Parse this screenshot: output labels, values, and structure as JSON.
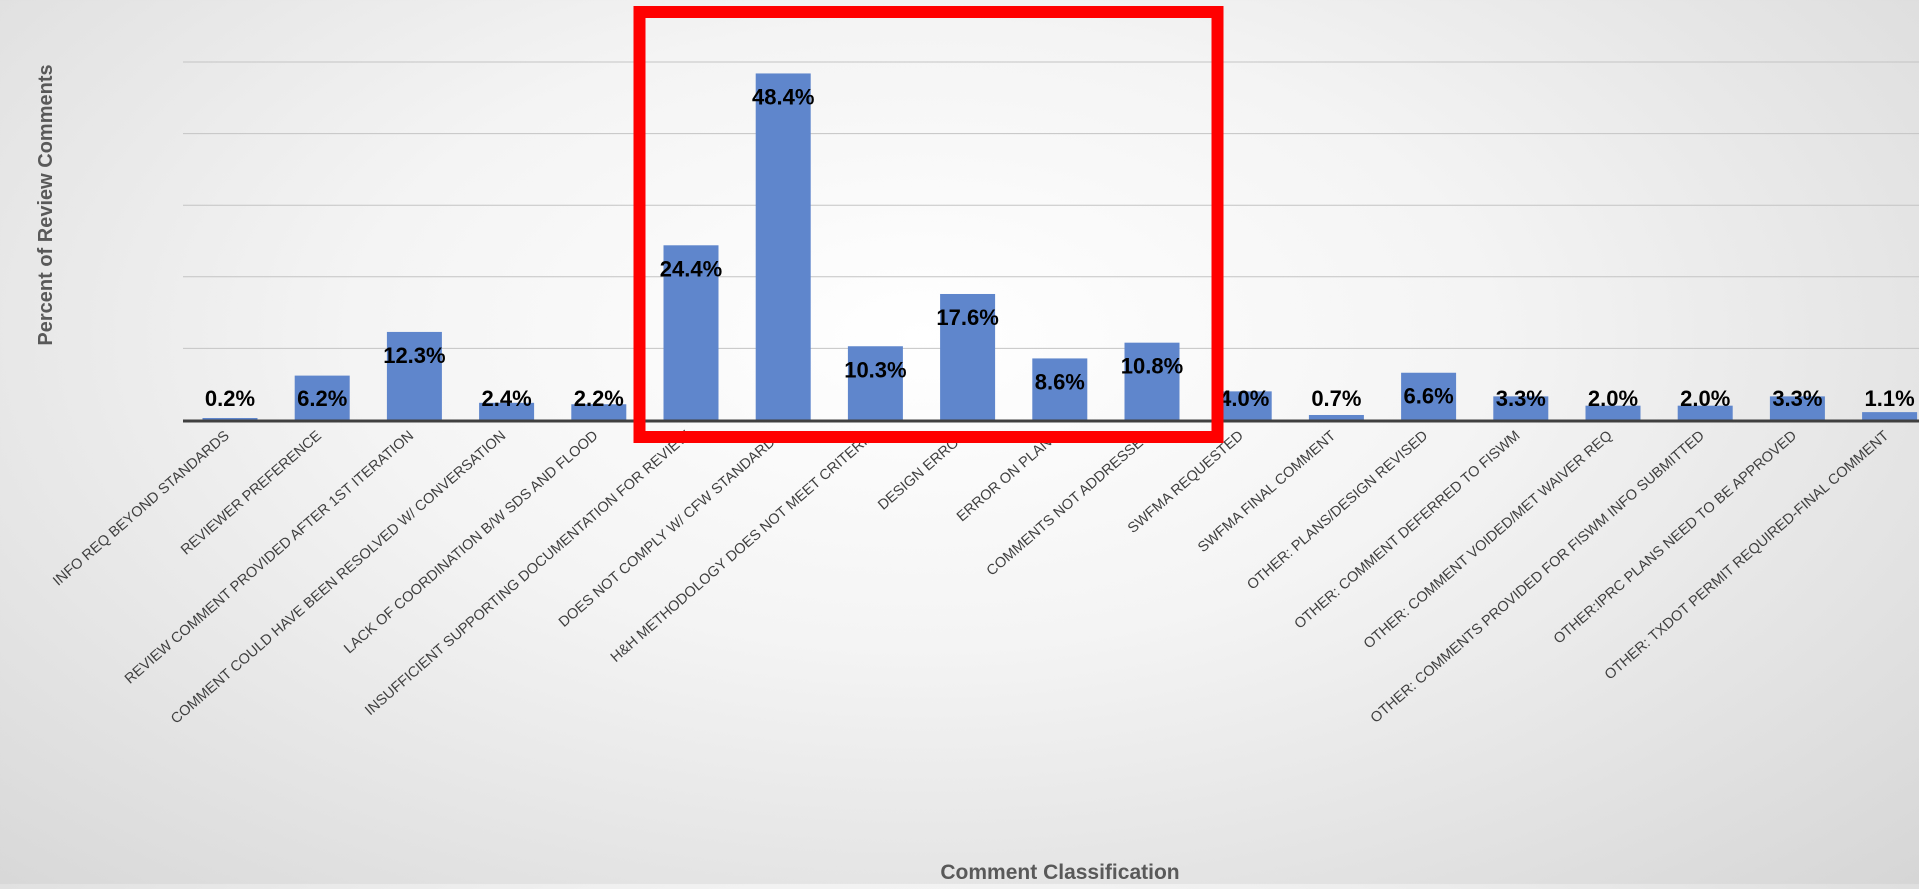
{
  "chart_data": {
    "type": "bar",
    "title": "",
    "xlabel": "Comment Classification",
    "ylabel": "Percent of Review Comments",
    "ylim": [
      0,
      50
    ],
    "grid": true,
    "bar_color": "#5f86cc",
    "highlight_color": "#ff0000",
    "highlight_range": [
      "INSUFFICIENT SUPPORTING DOCUMENTATION FOR REVIEW",
      "COMMENTS NOT ADDRESSED"
    ],
    "categories": [
      "INFO REQ BEYOND STANDARDS",
      "REVIEWER PREFERENCE",
      "REVIEW COMMENT PROVIDED AFTER 1ST ITERATION",
      "COMMENT COULD HAVE BEEN RESOLVED W/ CONVERSATION",
      "LACK OF COORDINATION B/W SDS AND FLOOD",
      "INSUFFICIENT SUPPORTING DOCUMENTATION FOR REVIEW",
      "DOES NOT COMPLY W/ CFW STANDARDS",
      "H&H METHODOLOGY DOES NOT MEET CRITERIA",
      "DESIGN ERROR",
      "ERROR ON PLANS",
      "COMMENTS NOT ADDRESSED",
      "SWFMA REQUESTED",
      "SWFMA FINAL COMMENT",
      "OTHER: PLANS/DESIGN REVISED",
      "OTHER: COMMENT DEFERRED TO FISWM",
      "OTHER: COMMENT VOIDED/MET WAIVER REQ",
      "OTHER: COMMENTS PROVIDED FOR FISWM INFO SUBMITTED",
      "OTHER:IPRC PLANS NEED TO BE APPROVED",
      "OTHER: TXDOT PERMIT REQUIRED-FINAL COMMENT"
    ],
    "values": [
      0.2,
      6.2,
      12.3,
      2.4,
      2.2,
      24.4,
      48.4,
      10.3,
      17.6,
      8.6,
      10.8,
      4.0,
      0.7,
      6.6,
      3.3,
      2.0,
      2.0,
      3.3,
      1.1
    ],
    "data_labels": [
      "0.2%",
      "6.2%",
      "12.3%",
      "2.4%",
      "2.2%",
      "24.4%",
      "48.4%",
      "10.3%",
      "17.6%",
      "8.6%",
      "10.8%",
      "4.0%",
      "0.7%",
      "6.6%",
      "3.3%",
      "2.0%",
      "2.0%",
      "3.3%",
      "1.1%"
    ]
  }
}
